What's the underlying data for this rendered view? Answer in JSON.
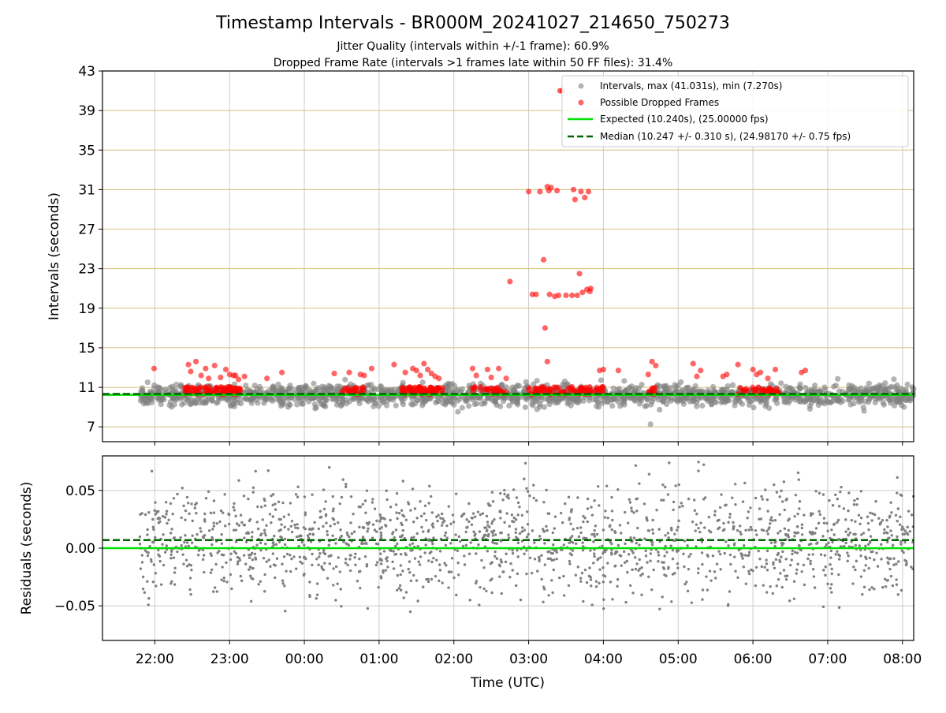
{
  "chart_data": [
    {
      "type": "scatter",
      "title": "Timestamp Intervals - BR000M_20241027_214650_750273",
      "subtitle_lines": [
        "Jitter Quality (intervals within +/-1 frame): 60.9%",
        "Dropped Frame Rate (intervals >1 frames late within 50 FF files): 31.4%"
      ],
      "xlabel": "",
      "ylabel": "Intervals (seconds)",
      "xlim_hours": [
        21.3,
        32.15
      ],
      "ylim": [
        5.5,
        43
      ],
      "yticks": [
        7,
        11,
        15,
        19,
        23,
        27,
        31,
        35,
        39,
        43
      ],
      "ytick_labels": [
        "7",
        "11",
        "15",
        "19",
        "23",
        "27",
        "31",
        "35",
        "39",
        "43"
      ],
      "grid": true,
      "legend_position": "upper right",
      "legend": [
        {
          "label": "Intervals, max (41.031s), min (7.270s)",
          "kind": "marker",
          "color": "#808080"
        },
        {
          "label": "Possible Dropped Frames",
          "kind": "marker",
          "color": "#ff0000"
        },
        {
          "label": "Expected (10.240s), (25.00000 fps)",
          "kind": "solid",
          "color": "#00e000"
        },
        {
          "label": "Median (10.247 +/- 0.310 s), (24.98170 +/- 0.75 fps)",
          "kind": "dashed",
          "color": "#006400"
        }
      ],
      "expected_interval": 10.24,
      "median_interval": 10.247,
      "series": [
        {
          "name": "Intervals, max (41.031s), min (7.270s)",
          "color": "#808080",
          "x_range_hours": [
            21.8,
            32.15
          ],
          "center": 10.24,
          "spread": 0.9,
          "max": 41.031,
          "min": 7.27
        },
        {
          "name": "Possible Dropped Frames",
          "color": "#ff0000",
          "x_hours": [
            21.99,
            22.45,
            22.48,
            22.55,
            22.62,
            22.68,
            22.72,
            22.8,
            22.88,
            22.95,
            23.0,
            23.05,
            23.08,
            23.12,
            23.2,
            23.5,
            23.7,
            24.4,
            24.6,
            24.75,
            24.8,
            24.9,
            25.2,
            25.35,
            25.45,
            25.5,
            25.55,
            25.6,
            25.65,
            25.7,
            25.75,
            25.8,
            26.25,
            26.3,
            26.45,
            26.5,
            26.6,
            26.7,
            26.75,
            27.0,
            27.05,
            27.1,
            27.15,
            27.2,
            27.22,
            27.25,
            27.3,
            27.35,
            27.38,
            27.4,
            27.42,
            27.45,
            27.5,
            27.58,
            27.6,
            27.62,
            27.65,
            27.68,
            27.7,
            27.72,
            27.75,
            27.78,
            27.8,
            27.82,
            27.83,
            27.25,
            27.27,
            27.28,
            27.95,
            28.0,
            28.2,
            28.6,
            28.65,
            28.7,
            29.2,
            29.25,
            29.3,
            29.6,
            29.65,
            29.8,
            30.0,
            30.05,
            30.1,
            30.2,
            30.3,
            30.65,
            30.7
          ],
          "y": [
            12.9,
            13.3,
            12.6,
            13.6,
            12.2,
            12.9,
            11.9,
            13.2,
            12.0,
            12.8,
            12.3,
            12.2,
            12.2,
            11.8,
            12.1,
            11.9,
            12.5,
            12.4,
            12.5,
            12.3,
            12.2,
            12.9,
            13.3,
            12.5,
            12.9,
            12.7,
            12.2,
            13.4,
            12.8,
            12.4,
            12.1,
            11.9,
            12.9,
            12.2,
            12.8,
            12.0,
            12.9,
            11.9,
            21.7,
            30.8,
            20.4,
            20.4,
            30.8,
            23.9,
            17.0,
            13.6,
            31.2,
            20.2,
            30.9,
            20.3,
            41.0,
            41.0,
            20.3,
            20.3,
            31.0,
            30.0,
            20.3,
            22.5,
            30.8,
            20.6,
            30.2,
            20.9,
            30.8,
            20.7,
            21.0,
            31.3,
            30.9,
            20.4,
            12.7,
            12.8,
            12.7,
            12.3,
            13.6,
            13.2,
            13.4,
            12.1,
            12.7,
            12.1,
            12.3,
            13.3,
            12.8,
            12.3,
            12.5,
            11.9,
            12.8,
            12.5,
            12.7
          ]
        }
      ]
    },
    {
      "type": "scatter",
      "xlabel": "Time (UTC)",
      "ylabel": "Residuals (seconds)",
      "xlim_hours": [
        21.3,
        32.15
      ],
      "ylim": [
        -0.08,
        0.08
      ],
      "yticks": [
        -0.05,
        0.0,
        0.05
      ],
      "ytick_labels": [
        "−0.05",
        "0.00",
        "0.05"
      ],
      "xticks_hours": [
        22,
        23,
        24,
        25,
        26,
        27,
        28,
        29,
        30,
        31,
        32
      ],
      "xtick_labels": [
        "22:00",
        "23:00",
        "00:00",
        "01:00",
        "02:00",
        "03:00",
        "04:00",
        "05:00",
        "06:00",
        "07:00",
        "08:00"
      ],
      "grid": true,
      "expected_residual": 0.0,
      "median_residual": 0.007,
      "series": [
        {
          "name": "",
          "color": "#808080",
          "x_range_hours": [
            21.8,
            32.15
          ],
          "center": 0.007,
          "spread": 0.03
        }
      ]
    }
  ]
}
